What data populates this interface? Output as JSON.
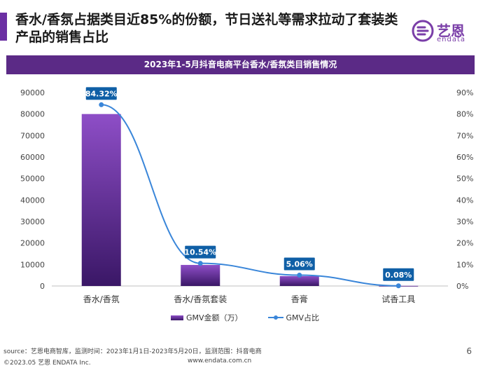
{
  "header": {
    "headline": "香水/香氛占据类目近85%的份额，节日送礼等需求拉动了套装类产品的销售占比",
    "accent_color": "#6b2fa3"
  },
  "logo": {
    "cn": "艺恩",
    "en": "endata",
    "color": "#7a3ea8"
  },
  "chart_banner": {
    "title": "2023年1-5月抖音电商平台香水/香氛类目销售情况",
    "color": "#5b2a86"
  },
  "chart_data": {
    "type": "bar",
    "title": "2023年1-5月抖音电商平台香水/香氛类目销售情况",
    "categories": [
      "香水/香氛",
      "香水/香氛套装",
      "香膏",
      "试香工具"
    ],
    "series": [
      {
        "name": "GMV金额（万）",
        "type": "bar",
        "axis": "left",
        "values": [
          80000,
          9800,
          4600,
          80
        ]
      },
      {
        "name": "GMV占比",
        "type": "line",
        "axis": "right",
        "values": [
          84.32,
          10.54,
          5.06,
          0.08
        ]
      }
    ],
    "data_labels": [
      "84.32%",
      "10.54%",
      "5.06%",
      "0.08%"
    ],
    "y_left": {
      "lim": [
        0,
        90000
      ],
      "ticks": [
        0,
        10000,
        20000,
        30000,
        40000,
        50000,
        60000,
        70000,
        80000,
        90000
      ],
      "labels": [
        "0",
        "10000",
        "20000",
        "30000",
        "40000",
        "50000",
        "60000",
        "70000",
        "80000",
        "90000"
      ]
    },
    "y_right": {
      "lim": [
        0,
        90
      ],
      "ticks": [
        0,
        10,
        20,
        30,
        40,
        50,
        60,
        70,
        80,
        90
      ],
      "labels": [
        "0%",
        "10%",
        "20%",
        "30%",
        "40%",
        "50%",
        "60%",
        "70%",
        "80%",
        "90%"
      ]
    },
    "colors": {
      "bar_top": "#8e4ec7",
      "bar_bottom": "#3a1766",
      "line": "#3a86d9",
      "label_bg": "#0f5fa6",
      "axis": "#bfbfbf"
    },
    "legend_position": "bottom"
  },
  "footer": {
    "source": "source：艺恩电商智库，监测时间：2023年1月1日-2023年5月20日，监测范围：抖音电商",
    "copyright": "©2023.05 艺恩 ENDATA Inc.",
    "url": "www.endata.com.cn",
    "page": "6"
  }
}
